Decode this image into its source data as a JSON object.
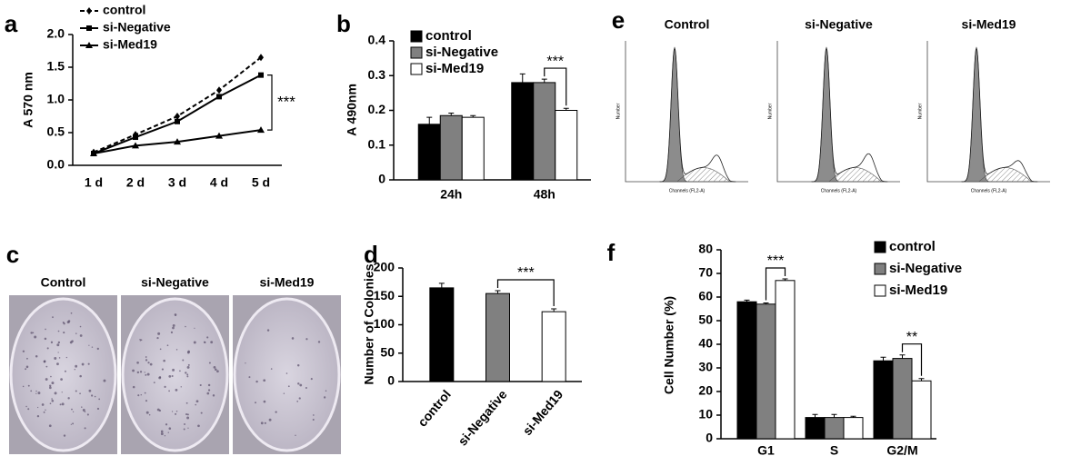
{
  "chart_data": [
    {
      "type": "line",
      "label": "a",
      "ylabel": "A 570 nm",
      "categories": [
        "1 d",
        "2 d",
        "3 d",
        "4 d",
        "5 d"
      ],
      "series": [
        {
          "name": "control",
          "color": "#000000",
          "dash": true,
          "marker": "diamond",
          "values": [
            0.2,
            0.47,
            0.75,
            1.15,
            1.65
          ]
        },
        {
          "name": "si-Negative",
          "color": "#000000",
          "dash": false,
          "marker": "square",
          "values": [
            0.18,
            0.43,
            0.67,
            1.05,
            1.38
          ]
        },
        {
          "name": "si-Med19",
          "color": "#000000",
          "dash": false,
          "marker": "triangle",
          "values": [
            0.18,
            0.3,
            0.36,
            0.45,
            0.54
          ]
        }
      ],
      "ylim": [
        0,
        2
      ],
      "yticks": [
        {
          "value": 0,
          "label": "0.0"
        },
        0.5,
        {
          "value": 1,
          "label": "1.0"
        },
        1.5,
        {
          "value": 2,
          "label": "2.0"
        }
      ],
      "annotations": [
        "***"
      ],
      "grid": false
    },
    {
      "type": "bar",
      "label": "b",
      "ylabel": "A 490nm",
      "categories": [
        "24h",
        "48h"
      ],
      "series": [
        {
          "name": "control",
          "color": "#000000",
          "values": [
            0.16,
            0.28
          ],
          "errors": [
            0.02,
            0.025
          ]
        },
        {
          "name": "si-Negative",
          "color": "#808080",
          "values": [
            0.185,
            0.28
          ],
          "errors": [
            0.007,
            0.01
          ]
        },
        {
          "name": "si-Med19",
          "color": "#ffffff",
          "values": [
            0.18,
            0.2
          ],
          "errors": [
            0.005,
            0.006
          ]
        }
      ],
      "ylim": [
        0,
        0.4
      ],
      "yticks": [
        0,
        0.1,
        0.2,
        0.3,
        0.4
      ],
      "annotations": [
        "***"
      ],
      "grid": false
    },
    {
      "type": "image",
      "label": "c",
      "titles": [
        "Control",
        "si-Negative",
        "si-Med19"
      ]
    },
    {
      "type": "bar",
      "label": "d",
      "ylabel": "Number of Colonies",
      "categories": [
        "control",
        "si-Negative",
        "si-Med19"
      ],
      "values": [
        165,
        155,
        123
      ],
      "errors": [
        8,
        5,
        5
      ],
      "colors": [
        "#000000",
        "#808080",
        "#ffffff"
      ],
      "ylim": [
        0,
        200
      ],
      "yticks": [
        0,
        50,
        100,
        150,
        200
      ],
      "annotations": [
        "***"
      ],
      "grid": false
    },
    {
      "type": "image",
      "label": "e",
      "titles": [
        "Control",
        "si-Negative",
        "si-Med19"
      ],
      "xlabel": "Channels (FL2-A)",
      "ylabel": "Number"
    },
    {
      "type": "bar",
      "label": "f",
      "ylabel": "Cell Number (%)",
      "categories": [
        "G1",
        "S",
        "G2/M"
      ],
      "series": [
        {
          "name": "control",
          "color": "#000000",
          "values": [
            58,
            9,
            33
          ],
          "errors": [
            0.7,
            1.3,
            1.5
          ]
        },
        {
          "name": "si-Negative",
          "color": "#808080",
          "values": [
            57,
            9,
            34
          ],
          "errors": [
            0.5,
            1.3,
            1.5
          ]
        },
        {
          "name": "si-Med19",
          "color": "#ffffff",
          "values": [
            67,
            9,
            24.5
          ],
          "errors": [
            0.7,
            0.5,
            1
          ]
        }
      ],
      "ylim": [
        0,
        80
      ],
      "yticks": [
        0,
        10,
        20,
        30,
        40,
        50,
        60,
        70,
        80
      ],
      "annotations": [
        "***",
        "**"
      ],
      "grid": false
    }
  ]
}
